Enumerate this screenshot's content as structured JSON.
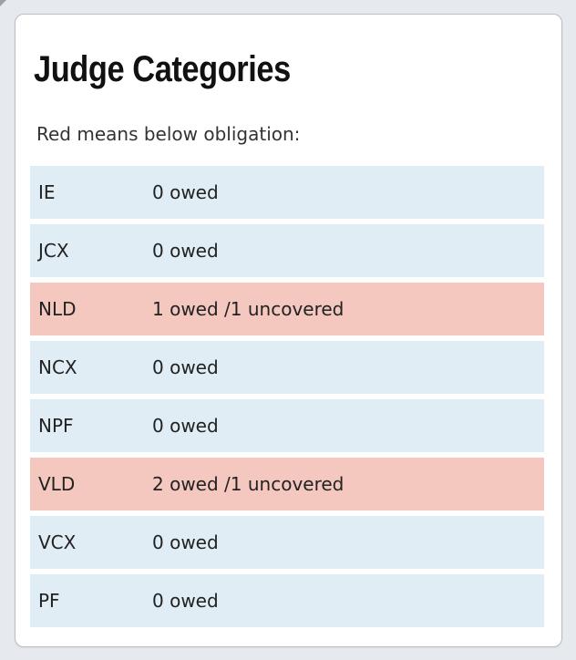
{
  "card": {
    "title": "Judge Categories",
    "subtitle": "Red means below obligation:"
  },
  "colors": {
    "ok_row": "#e1edf5",
    "below_obligation_row": "#f4c8bf"
  },
  "categories": [
    {
      "name": "IE",
      "status": "0 owed",
      "below_obligation": false
    },
    {
      "name": "JCX",
      "status": "0 owed",
      "below_obligation": false
    },
    {
      "name": "NLD",
      "status": "1 owed /1 uncovered",
      "below_obligation": true
    },
    {
      "name": "NCX",
      "status": "0 owed",
      "below_obligation": false
    },
    {
      "name": "NPF",
      "status": "0 owed",
      "below_obligation": false
    },
    {
      "name": "VLD",
      "status": "2 owed /1 uncovered",
      "below_obligation": true
    },
    {
      "name": "VCX",
      "status": "0 owed",
      "below_obligation": false
    },
    {
      "name": "PF",
      "status": "0 owed",
      "below_obligation": false
    }
  ]
}
